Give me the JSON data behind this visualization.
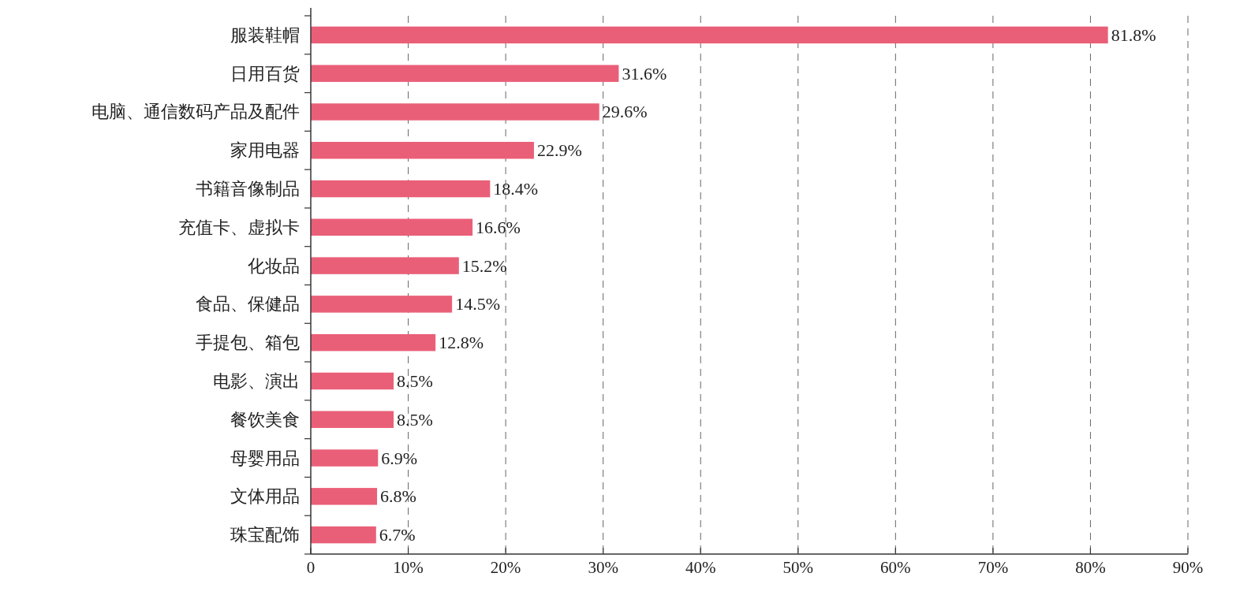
{
  "chart_data": {
    "type": "bar",
    "orientation": "horizontal",
    "categories": [
      "服装鞋帽",
      "日用百货",
      "电脑、通信数码产品及配件",
      "家用电器",
      "书籍音像制品",
      "充值卡、虚拟卡",
      "化妆品",
      "食品、保健品",
      "手提包、箱包",
      "电影、演出",
      "餐饮美食",
      "母婴用品",
      "文体用品",
      "珠宝配饰"
    ],
    "values": [
      81.8,
      31.6,
      29.6,
      22.9,
      18.4,
      16.6,
      15.2,
      14.5,
      12.8,
      8.5,
      8.5,
      6.9,
      6.8,
      6.7
    ],
    "value_labels": [
      "81.8%",
      "31.6%",
      "29.6%",
      "22.9%",
      "18.4%",
      "16.6%",
      "15.2%",
      "14.5%",
      "12.8%",
      "8.5%",
      "8.5%",
      "6.9%",
      "6.8%",
      "6.7%"
    ],
    "color": "#ea5f78",
    "xlim": [
      0,
      90
    ],
    "xticks": [
      0,
      {
        "value": 10,
        "label": "10%"
      },
      {
        "value": 20,
        "label": "20%"
      },
      {
        "value": 30,
        "label": "30%"
      },
      {
        "value": 40,
        "label": "40%"
      },
      {
        "value": 50,
        "label": "50%"
      },
      {
        "value": 60,
        "label": "60%"
      },
      {
        "value": 70,
        "label": "70%"
      },
      {
        "value": 80,
        "label": "80%"
      },
      {
        "value": 90,
        "label": "90%"
      }
    ],
    "grid": "x"
  }
}
